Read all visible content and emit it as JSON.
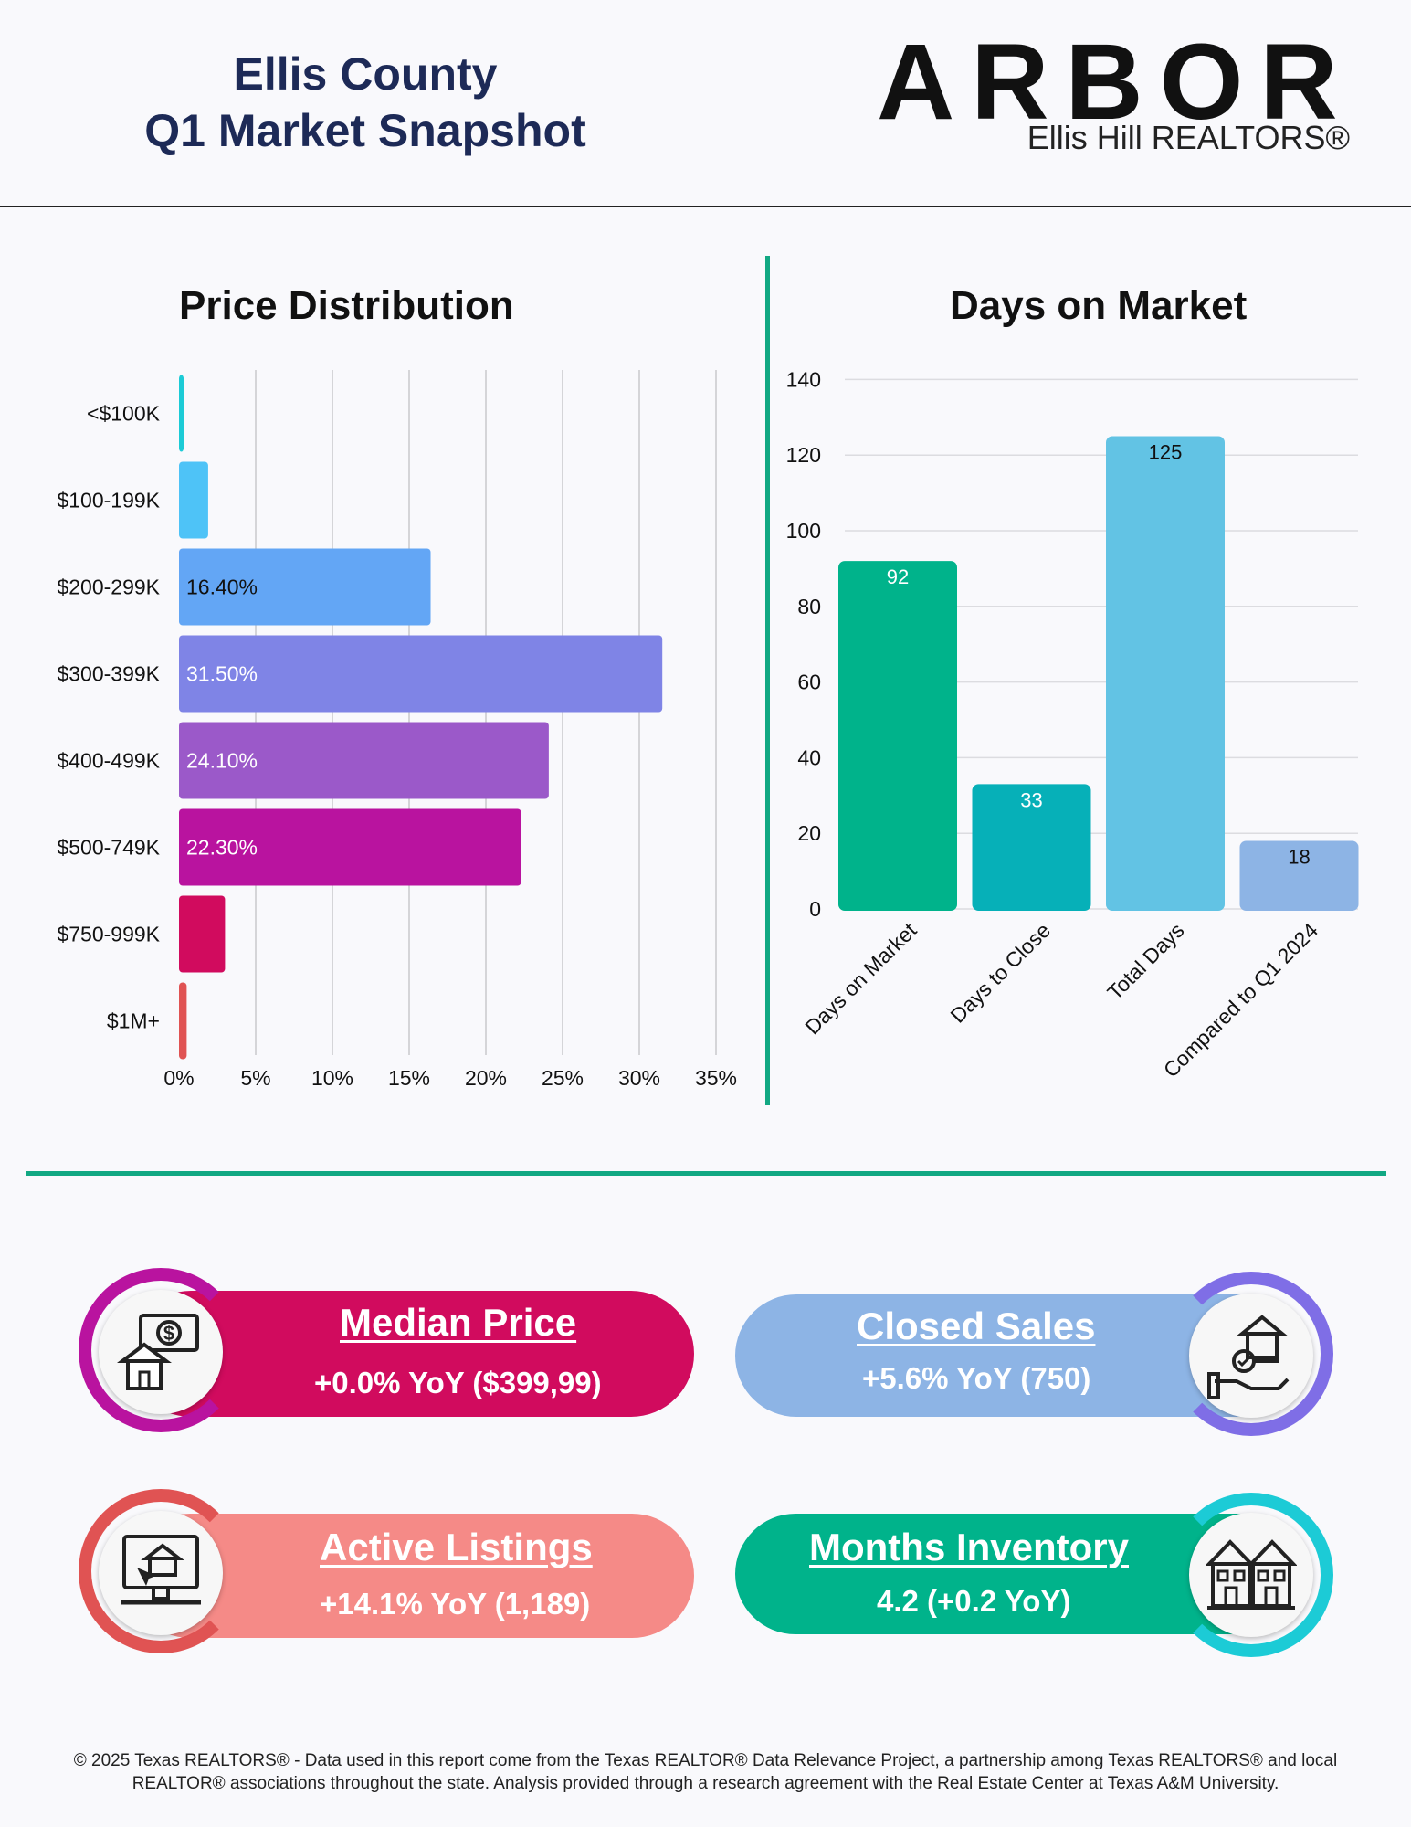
{
  "header": {
    "title_line1": "Ellis County",
    "title_line2": "Q1 Market Snapshot",
    "logo_word": "ARBOR",
    "logo_sub": "Ellis Hill REALTORS®"
  },
  "colors": {
    "accent_green": "#12a883",
    "navy": "#1d2a57"
  },
  "chart_data": [
    {
      "type": "bar",
      "orientation": "horizontal",
      "title": "Price Distribution",
      "categories": [
        "<$100K",
        "$100-199K",
        "$200-299K",
        "$300-399K",
        "$400-499K",
        "$500-749K",
        "$750-999K",
        "$1M+"
      ],
      "values": [
        0.3,
        1.9,
        16.4,
        31.5,
        24.1,
        22.3,
        3.0,
        0.5
      ],
      "data_labels": [
        "",
        "",
        "16.40%",
        "31.50%",
        "24.10%",
        "22.30%",
        "",
        ""
      ],
      "bar_colors": [
        "#1ccbd6",
        "#4ec3f7",
        "#63a6f5",
        "#7f84e6",
        "#9b59c9",
        "#b9139f",
        "#d10b5e",
        "#e05353"
      ],
      "x_ticks": [
        "0%",
        "5%",
        "10%",
        "15%",
        "20%",
        "25%",
        "30%",
        "35%"
      ],
      "xlim": [
        0,
        35
      ],
      "grid": true
    },
    {
      "type": "bar",
      "title": "Days on Market",
      "categories": [
        "Days on Market",
        "Days to Close",
        "Total Days",
        "Compared to Q1 2024"
      ],
      "values": [
        92,
        33,
        125,
        18
      ],
      "bar_colors": [
        "#00b38b",
        "#06b0b8",
        "#62c3e4",
        "#8db4e5"
      ],
      "y_ticks": [
        "0",
        "20",
        "40",
        "60",
        "80",
        "100",
        "120",
        "140"
      ],
      "ylim": [
        0,
        140
      ],
      "grid": true
    }
  ],
  "stats": {
    "median_price": {
      "label": "Median Price",
      "value": "+0.0% YoY ($399,99)",
      "icon": "money-house-icon",
      "color": "#d10b5e",
      "ring": "#b9139f"
    },
    "closed_sales": {
      "label": "Closed Sales",
      "value": "+5.6% YoY (750)",
      "icon": "hand-house-key-icon",
      "color": "#8db4e5",
      "ring": "#7f6ee6"
    },
    "active_listings": {
      "label": "Active Listings",
      "value": "+14.1% YoY (1,189)",
      "icon": "monitor-house-icon",
      "color": "#f58a87",
      "ring": "#e05353"
    },
    "months_inventory": {
      "label": "Months Inventory",
      "value": "4.2 (+0.2 YoY)",
      "icon": "townhouses-icon",
      "color": "#00b38b",
      "ring": "#1ccbd6"
    }
  },
  "footer": {
    "line1": "© 2025 Texas REALTORS® - Data used in this report come from the Texas REALTOR® Data Relevance Project, a partnership among Texas REALTORS® and local",
    "line2": "REALTOR® associations throughout the state. Analysis provided through a research agreement with the Real Estate Center at Texas A&M University."
  }
}
